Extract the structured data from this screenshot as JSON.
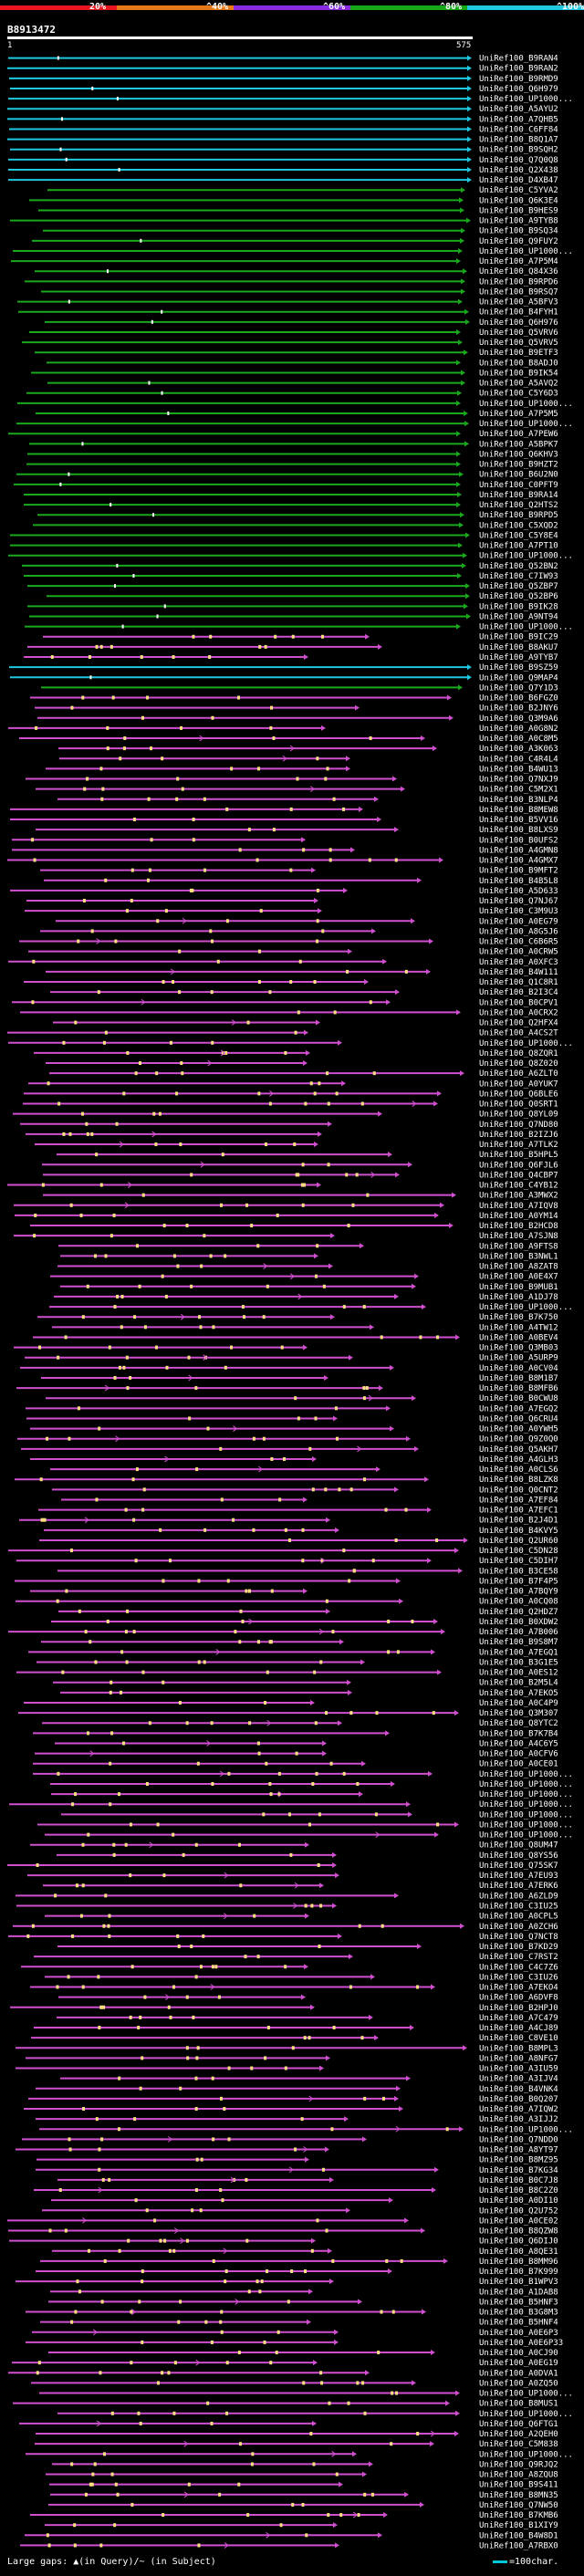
{
  "header": {
    "title": "B8913472",
    "ruler_start": "1",
    "ruler_end": "575",
    "bands": [
      {
        "label": "20%",
        "color": "#e8141e"
      },
      {
        "label": "^40%",
        "color": "#e87818"
      },
      {
        "label": "^60%",
        "color": "#8a2be2"
      },
      {
        "label": "^80%",
        "color": "#17a81a"
      },
      {
        "label": "^100%",
        "color": "#20c8e0"
      }
    ]
  },
  "colors": {
    "background": "#000000",
    "cyan": "#1ec8e0",
    "green": "#1aa81c",
    "magenta": "#cf4fcf",
    "gap_mark": "#ffe080"
  },
  "footer": {
    "gaps_text": "Large gaps: ▲(in Query)/~ (in Subject)",
    "scale_text": "=100char."
  },
  "hits": [
    {
      "id": "UniRef100_B9RAN4",
      "color": "cyan"
    },
    {
      "id": "UniRef100_B9RAN2",
      "color": "cyan"
    },
    {
      "id": "UniRef100_B9RMD9",
      "color": "cyan"
    },
    {
      "id": "UniRef100_Q6H979",
      "color": "cyan"
    },
    {
      "id": "UniRef100_UP1000...",
      "color": "cyan"
    },
    {
      "id": "UniRef100_A5AYU2",
      "color": "cyan"
    },
    {
      "id": "UniRef100_A7QHB5",
      "color": "cyan"
    },
    {
      "id": "UniRef100_C6FF84",
      "color": "cyan"
    },
    {
      "id": "UniRef100_B8Q1A7",
      "color": "cyan"
    },
    {
      "id": "UniRef100_B9SQH2",
      "color": "cyan"
    },
    {
      "id": "UniRef100_Q7Q0Q8",
      "color": "cyan"
    },
    {
      "id": "UniRef100_Q2X438",
      "color": "cyan"
    },
    {
      "id": "UniRef100_D4XB47",
      "color": "cyan"
    },
    {
      "id": "UniRef100_C5YVA2",
      "color": "green"
    },
    {
      "id": "UniRef100_Q6K3E4",
      "color": "green"
    },
    {
      "id": "UniRef100_B9HES9",
      "color": "green"
    },
    {
      "id": "UniRef100_A9TYB8",
      "color": "green"
    },
    {
      "id": "UniRef100_B9SQ34",
      "color": "green"
    },
    {
      "id": "UniRef100_Q9FUY2",
      "color": "green"
    },
    {
      "id": "UniRef100_UP1000...",
      "color": "green"
    },
    {
      "id": "UniRef100_A7P5M4",
      "color": "green"
    },
    {
      "id": "UniRef100_Q84X36",
      "color": "green"
    },
    {
      "id": "UniRef100_B9RPD6",
      "color": "green"
    },
    {
      "id": "UniRef100_B9RSQ7",
      "color": "green"
    },
    {
      "id": "UniRef100_A5BFV3",
      "color": "green"
    },
    {
      "id": "UniRef100_B4FYH1",
      "color": "green"
    },
    {
      "id": "UniRef100_Q6H976",
      "color": "green"
    },
    {
      "id": "UniRef100_Q5VRV6",
      "color": "green"
    },
    {
      "id": "UniRef100_Q5VRV5",
      "color": "green"
    },
    {
      "id": "UniRef100_B9ETF3",
      "color": "green"
    },
    {
      "id": "UniRef100_B8ADJ0",
      "color": "green"
    },
    {
      "id": "UniRef100_B9IK54",
      "color": "green"
    },
    {
      "id": "UniRef100_A5AVQ2",
      "color": "green"
    },
    {
      "id": "UniRef100_C5Y6D3",
      "color": "green"
    },
    {
      "id": "UniRef100_UP1000...",
      "color": "green"
    },
    {
      "id": "UniRef100_A7P5M5",
      "color": "green"
    },
    {
      "id": "UniRef100_UP1000...",
      "color": "green"
    },
    {
      "id": "UniRef100_A7PEW6",
      "color": "green"
    },
    {
      "id": "UniRef100_A5BPK7",
      "color": "green"
    },
    {
      "id": "UniRef100_Q6KHV3",
      "color": "green"
    },
    {
      "id": "UniRef100_B9HZT2",
      "color": "green"
    },
    {
      "id": "UniRef100_B6U2N0",
      "color": "green"
    },
    {
      "id": "UniRef100_C0PFT9",
      "color": "green"
    },
    {
      "id": "UniRef100_B9RA14",
      "color": "green"
    },
    {
      "id": "UniRef100_Q2HTS2",
      "color": "green"
    },
    {
      "id": "UniRef100_B9RPD5",
      "color": "green"
    },
    {
      "id": "UniRef100_C5XQD2",
      "color": "green"
    },
    {
      "id": "UniRef100_C5Y8E4",
      "color": "green"
    },
    {
      "id": "UniRef100_A7PT10",
      "color": "green"
    },
    {
      "id": "UniRef100_UP1000...",
      "color": "green"
    },
    {
      "id": "UniRef100_Q52BN2",
      "color": "green"
    },
    {
      "id": "UniRef100_C7IW93",
      "color": "green"
    },
    {
      "id": "UniRef100_Q5ZBP7",
      "color": "green"
    },
    {
      "id": "UniRef100_Q52BP6",
      "color": "green"
    },
    {
      "id": "UniRef100_B9IK28",
      "color": "green"
    },
    {
      "id": "UniRef100_A9NT94",
      "color": "green"
    },
    {
      "id": "UniRef100_UP1000...",
      "color": "green"
    },
    {
      "id": "UniRef100_B9IC29",
      "color": "magenta"
    },
    {
      "id": "UniRef100_B8AKU7",
      "color": "magenta"
    },
    {
      "id": "UniRef100_A9TYB7",
      "color": "magenta"
    },
    {
      "id": "UniRef100_B9SZ59",
      "color": "cyan"
    },
    {
      "id": "UniRef100_Q9MAP4",
      "color": "cyan"
    },
    {
      "id": "UniRef100_Q7Y1D3",
      "color": "green"
    },
    {
      "id": "UniRef100_B6FGZ0",
      "color": "magenta"
    },
    {
      "id": "UniRef100_B2JNY6",
      "color": "magenta"
    },
    {
      "id": "UniRef100_Q3M9A6",
      "color": "magenta"
    },
    {
      "id": "UniRef100_A0G8N2",
      "color": "magenta"
    },
    {
      "id": "UniRef100_A0C8M5",
      "color": "magenta"
    },
    {
      "id": "UniRef100_A3K063",
      "color": "magenta"
    },
    {
      "id": "UniRef100_C4R4L4",
      "color": "magenta"
    },
    {
      "id": "UniRef100_B4WU13",
      "color": "magenta"
    },
    {
      "id": "UniRef100_Q7NXJ9",
      "color": "magenta"
    },
    {
      "id": "UniRef100_C5M2X1",
      "color": "magenta"
    },
    {
      "id": "UniRef100_B3NLP4",
      "color": "magenta"
    },
    {
      "id": "UniRef100_B8MEW8",
      "color": "magenta"
    },
    {
      "id": "UniRef100_B5VV16",
      "color": "magenta"
    },
    {
      "id": "UniRef100_B8LXS9",
      "color": "magenta"
    },
    {
      "id": "UniRef100_B0UFS2",
      "color": "magenta"
    },
    {
      "id": "UniRef100_A4GMN8",
      "color": "magenta"
    },
    {
      "id": "UniRef100_A4GMX7",
      "color": "magenta"
    },
    {
      "id": "UniRef100_B9MFT2",
      "color": "magenta"
    },
    {
      "id": "UniRef100_B4B5L8",
      "color": "magenta"
    },
    {
      "id": "UniRef100_A5D633",
      "color": "magenta"
    },
    {
      "id": "UniRef100_Q7NJ67",
      "color": "magenta"
    },
    {
      "id": "UniRef100_C3M9U3",
      "color": "magenta"
    },
    {
      "id": "UniRef100_A0EG79",
      "color": "magenta"
    },
    {
      "id": "UniRef100_A8G5J6",
      "color": "magenta"
    },
    {
      "id": "UniRef100_C6B6R5",
      "color": "magenta"
    },
    {
      "id": "UniRef100_A0CRW5",
      "color": "magenta"
    },
    {
      "id": "UniRef100_A0XFC3",
      "color": "magenta"
    },
    {
      "id": "UniRef100_B4W111",
      "color": "magenta"
    },
    {
      "id": "UniRef100_Q1C8R1",
      "color": "magenta"
    },
    {
      "id": "UniRef100_B2I3C4",
      "color": "magenta"
    },
    {
      "id": "UniRef100_B0CPV1",
      "color": "magenta"
    },
    {
      "id": "UniRef100_A0CRX2",
      "color": "magenta"
    },
    {
      "id": "UniRef100_Q2HFX4",
      "color": "magenta"
    },
    {
      "id": "UniRef100_A4CS2T",
      "color": "magenta"
    },
    {
      "id": "UniRef100_UP1000...",
      "color": "magenta"
    },
    {
      "id": "UniRef100_Q8ZQR1",
      "color": "magenta"
    },
    {
      "id": "UniRef100_Q8Z020",
      "color": "magenta"
    },
    {
      "id": "UniRef100_A6ZLT0",
      "color": "magenta"
    },
    {
      "id": "UniRef100_A0YUK7",
      "color": "magenta"
    },
    {
      "id": "UniRef100_Q6BLE6",
      "color": "magenta"
    },
    {
      "id": "UniRef100_Q0SRT1",
      "color": "magenta"
    },
    {
      "id": "UniRef100_Q8YL09",
      "color": "magenta"
    },
    {
      "id": "UniRef100_Q7ND80",
      "color": "magenta"
    },
    {
      "id": "UniRef100_B2IZJ6",
      "color": "magenta"
    },
    {
      "id": "UniRef100_A7TLK2",
      "color": "magenta"
    },
    {
      "id": "UniRef100_B5HPL5",
      "color": "magenta"
    },
    {
      "id": "UniRef100_Q6FJL6",
      "color": "magenta"
    },
    {
      "id": "UniRef100_Q4CBP7",
      "color": "magenta"
    },
    {
      "id": "UniRef100_C4YB12",
      "color": "magenta"
    },
    {
      "id": "UniRef100_A3MWX2",
      "color": "magenta"
    },
    {
      "id": "UniRef100_A7IQV8",
      "color": "magenta"
    },
    {
      "id": "UniRef100_A0YM14",
      "color": "magenta"
    },
    {
      "id": "UniRef100_B2HCD8",
      "color": "magenta"
    },
    {
      "id": "UniRef100_A7SJN8",
      "color": "magenta"
    },
    {
      "id": "UniRef100_A9FTS8",
      "color": "magenta"
    },
    {
      "id": "UniRef100_B3NWL1",
      "color": "magenta"
    },
    {
      "id": "UniRef100_A8ZAT8",
      "color": "magenta"
    },
    {
      "id": "UniRef100_A0E4X7",
      "color": "magenta"
    },
    {
      "id": "UniRef100_B9MUB1",
      "color": "magenta"
    },
    {
      "id": "UniRef100_A1DJ78",
      "color": "magenta"
    },
    {
      "id": "UniRef100_UP1000...",
      "color": "magenta"
    },
    {
      "id": "UniRef100_B7K750",
      "color": "magenta"
    },
    {
      "id": "UniRef100_A4TW12",
      "color": "magenta"
    },
    {
      "id": "UniRef100_A0BEV4",
      "color": "magenta"
    },
    {
      "id": "UniRef100_Q3MB03",
      "color": "magenta"
    },
    {
      "id": "UniRef100_A5URP9",
      "color": "magenta"
    },
    {
      "id": "UniRef100_A0CV04",
      "color": "magenta"
    },
    {
      "id": "UniRef100_B8M1B7",
      "color": "magenta"
    },
    {
      "id": "UniRef100_B8MFB6",
      "color": "magenta"
    },
    {
      "id": "UniRef100_B0CWU8",
      "color": "magenta"
    },
    {
      "id": "UniRef100_A7EGQ2",
      "color": "magenta"
    },
    {
      "id": "UniRef100_Q6CRU4",
      "color": "magenta"
    },
    {
      "id": "UniRef100_A0YWH5",
      "color": "magenta"
    },
    {
      "id": "UniRef100_Q9Z0Q0",
      "color": "magenta"
    },
    {
      "id": "UniRef100_Q5AKH7",
      "color": "magenta"
    },
    {
      "id": "UniRef100_A4GLH3",
      "color": "magenta"
    },
    {
      "id": "UniRef100_A0CLS6",
      "color": "magenta"
    },
    {
      "id": "UniRef100_B8LZK8",
      "color": "magenta"
    },
    {
      "id": "UniRef100_Q0CNT2",
      "color": "magenta"
    },
    {
      "id": "UniRef100_A7EF84",
      "color": "magenta"
    },
    {
      "id": "UniRef100_A7EFC1",
      "color": "magenta"
    },
    {
      "id": "UniRef100_B2J4D1",
      "color": "magenta"
    },
    {
      "id": "UniRef100_B4KVY5",
      "color": "magenta"
    },
    {
      "id": "UniRef100_Q2UR60",
      "color": "magenta"
    },
    {
      "id": "UniRef100_C5DN28",
      "color": "magenta"
    },
    {
      "id": "UniRef100_C5DIH7",
      "color": "magenta"
    },
    {
      "id": "UniRef100_B3CE58",
      "color": "magenta"
    },
    {
      "id": "UniRef100_B7F4P5",
      "color": "magenta"
    },
    {
      "id": "UniRef100_A7BQY9",
      "color": "magenta"
    },
    {
      "id": "UniRef100_A0CQ08",
      "color": "magenta"
    },
    {
      "id": "UniRef100_Q2HDZ7",
      "color": "magenta"
    },
    {
      "id": "UniRef100_B0XDW2",
      "color": "magenta"
    },
    {
      "id": "UniRef100_A7B006",
      "color": "magenta"
    },
    {
      "id": "UniRef100_B9S8M7",
      "color": "magenta"
    },
    {
      "id": "UniRef100_A7EGQ1",
      "color": "magenta"
    },
    {
      "id": "UniRef100_B3G1E5",
      "color": "magenta"
    },
    {
      "id": "UniRef100_A0ES12",
      "color": "magenta"
    },
    {
      "id": "UniRef100_B2M5L4",
      "color": "magenta"
    },
    {
      "id": "UniRef100_A7EKO5",
      "color": "magenta"
    },
    {
      "id": "UniRef100_A0C4P9",
      "color": "magenta"
    },
    {
      "id": "UniRef100_Q3M307",
      "color": "magenta"
    },
    {
      "id": "UniRef100_Q8YTC2",
      "color": "magenta"
    },
    {
      "id": "UniRef100_B7K7B4",
      "color": "magenta"
    },
    {
      "id": "UniRef100_A4C6Y5",
      "color": "magenta"
    },
    {
      "id": "UniRef100_A0CFV6",
      "color": "magenta"
    },
    {
      "id": "UniRef100_A0CE01",
      "color": "magenta"
    },
    {
      "id": "UniRef100_UP1000...",
      "color": "magenta"
    },
    {
      "id": "UniRef100_UP1000...",
      "color": "magenta"
    },
    {
      "id": "UniRef100_UP1000...",
      "color": "magenta"
    },
    {
      "id": "UniRef100_UP1000...",
      "color": "magenta"
    },
    {
      "id": "UniRef100_UP1000...",
      "color": "magenta"
    },
    {
      "id": "UniRef100_UP1000...",
      "color": "magenta"
    },
    {
      "id": "UniRef100_UP1000...",
      "color": "magenta"
    },
    {
      "id": "UniRef100_Q8UM47",
      "color": "magenta"
    },
    {
      "id": "UniRef100_Q8YS56",
      "color": "magenta"
    },
    {
      "id": "UniRef100_Q75SK7",
      "color": "magenta"
    },
    {
      "id": "UniRef100_A7EU93",
      "color": "magenta"
    },
    {
      "id": "UniRef100_A7ERK6",
      "color": "magenta"
    },
    {
      "id": "UniRef100_A6ZLD9",
      "color": "magenta"
    },
    {
      "id": "UniRef100_C3IU25",
      "color": "magenta"
    },
    {
      "id": "UniRef100_A0CPL5",
      "color": "magenta"
    },
    {
      "id": "UniRef100_A0ZCH6",
      "color": "magenta"
    },
    {
      "id": "UniRef100_Q7NCT8",
      "color": "magenta"
    },
    {
      "id": "UniRef100_B7KD29",
      "color": "magenta"
    },
    {
      "id": "UniRef100_C7RST2",
      "color": "magenta"
    },
    {
      "id": "UniRef100_C4C7Z6",
      "color": "magenta"
    },
    {
      "id": "UniRef100_C3IU26",
      "color": "magenta"
    },
    {
      "id": "UniRef100_A7EKO4",
      "color": "magenta"
    },
    {
      "id": "UniRef100_A6DVF8",
      "color": "magenta"
    },
    {
      "id": "UniRef100_B2HPJ0",
      "color": "magenta"
    },
    {
      "id": "UniRef100_A7C479",
      "color": "magenta"
    },
    {
      "id": "UniRef100_A4CJ89",
      "color": "magenta"
    },
    {
      "id": "UniRef100_C8VE10",
      "color": "magenta"
    },
    {
      "id": "UniRef100_B8MPL3",
      "color": "magenta"
    },
    {
      "id": "UniRef100_A8NFG7",
      "color": "magenta"
    },
    {
      "id": "UniRef100_A3IU59",
      "color": "magenta"
    },
    {
      "id": "UniRef100_A3IJV4",
      "color": "magenta"
    },
    {
      "id": "UniRef100_B4VNK4",
      "color": "magenta"
    },
    {
      "id": "UniRef100_B0Q207",
      "color": "magenta"
    },
    {
      "id": "UniRef100_A7IQW2",
      "color": "magenta"
    },
    {
      "id": "UniRef100_A3IJJ2",
      "color": "magenta"
    },
    {
      "id": "UniRef100_UP1000...",
      "color": "magenta"
    },
    {
      "id": "UniRef100_Q7NDD0",
      "color": "magenta"
    },
    {
      "id": "UniRef100_A8YT97",
      "color": "magenta"
    },
    {
      "id": "UniRef100_B8MZ95",
      "color": "magenta"
    },
    {
      "id": "UniRef100_B7KG34",
      "color": "magenta"
    },
    {
      "id": "UniRef100_B0C7J8",
      "color": "magenta"
    },
    {
      "id": "UniRef100_B8C2Z0",
      "color": "magenta"
    },
    {
      "id": "UniRef100_A0DI10",
      "color": "magenta"
    },
    {
      "id": "UniRef100_Q2U752",
      "color": "magenta"
    },
    {
      "id": "UniRef100_A0CE02",
      "color": "magenta"
    },
    {
      "id": "UniRef100_B8QZW8",
      "color": "magenta"
    },
    {
      "id": "UniRef100_Q6DIJ0",
      "color": "magenta"
    },
    {
      "id": "UniRef100_A8QE31",
      "color": "magenta"
    },
    {
      "id": "UniRef100_B8MM96",
      "color": "magenta"
    },
    {
      "id": "UniRef100_B7K999",
      "color": "magenta"
    },
    {
      "id": "UniRef100_B1WPV3",
      "color": "magenta"
    },
    {
      "id": "UniRef100_A1DAB8",
      "color": "magenta"
    },
    {
      "id": "UniRef100_B5HNF3",
      "color": "magenta"
    },
    {
      "id": "UniRef100_B3G8M3",
      "color": "magenta"
    },
    {
      "id": "UniRef100_B5HNF4",
      "color": "magenta"
    },
    {
      "id": "UniRef100_A0E6P3",
      "color": "magenta"
    },
    {
      "id": "UniRef100_A0E6P33",
      "color": "magenta"
    },
    {
      "id": "UniRef100_A0CJ90",
      "color": "magenta"
    },
    {
      "id": "UniRef100_A0EG19",
      "color": "magenta"
    },
    {
      "id": "UniRef100_A0DVA1",
      "color": "magenta"
    },
    {
      "id": "UniRef100_A0ZQ50",
      "color": "magenta"
    },
    {
      "id": "UniRef100_UP1000...",
      "color": "magenta"
    },
    {
      "id": "UniRef100_B8MUS1",
      "color": "magenta"
    },
    {
      "id": "UniRef100_UP1000...",
      "color": "magenta"
    },
    {
      "id": "UniRef100_Q6FTG1",
      "color": "magenta"
    },
    {
      "id": "UniRef100_A2QEH0",
      "color": "magenta"
    },
    {
      "id": "UniRef100_C5M838",
      "color": "magenta"
    },
    {
      "id": "UniRef100_UP1000...",
      "color": "magenta"
    },
    {
      "id": "UniRef100_Q9RJQ2",
      "color": "magenta"
    },
    {
      "id": "UniRef100_A8ZQU8",
      "color": "magenta"
    },
    {
      "id": "UniRef100_B9S411",
      "color": "magenta"
    },
    {
      "id": "UniRef100_B8MN35",
      "color": "magenta"
    },
    {
      "id": "UniRef100_Q7NW50",
      "color": "magenta"
    },
    {
      "id": "UniRef100_B7KMB6",
      "color": "magenta"
    },
    {
      "id": "UniRef100_B1XIY9",
      "color": "magenta"
    },
    {
      "id": "UniRef100_B4W8D1",
      "color": "magenta"
    },
    {
      "id": "UniRef100_A7RBX0",
      "color": "magenta"
    }
  ]
}
